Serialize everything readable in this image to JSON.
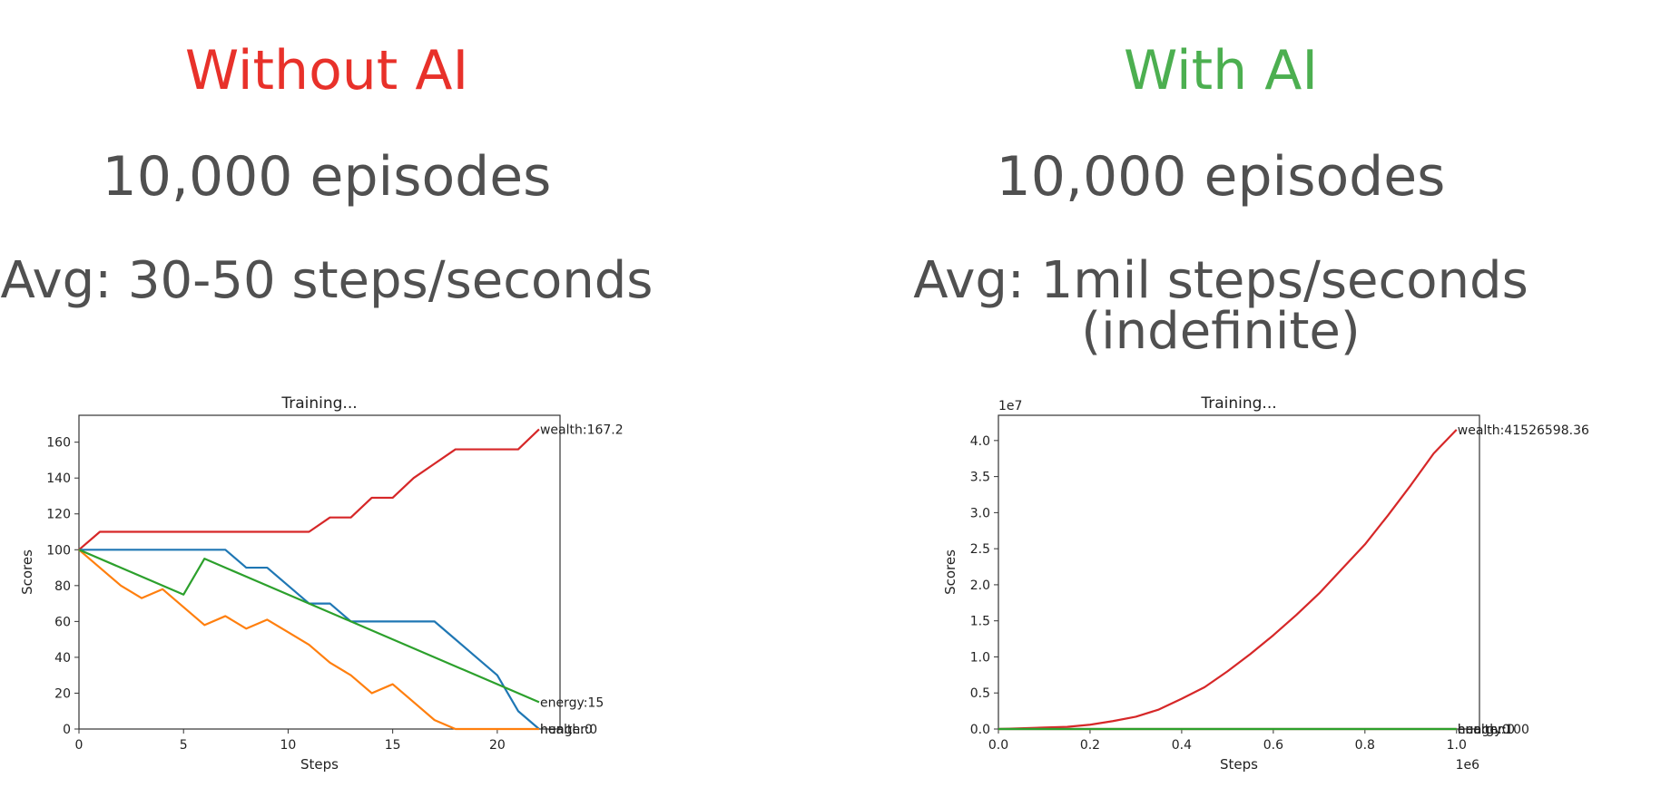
{
  "left": {
    "heading": "Without AI",
    "heading_color": "#e8312a",
    "episodes": "10,000 episodes",
    "avg": "Avg: 30-50 steps/seconds"
  },
  "right": {
    "heading": "With AI",
    "heading_color": "#4caf50",
    "episodes": "10,000 episodes",
    "avg": "Avg: 1mil steps/seconds (indefinite)"
  },
  "chart_data": [
    {
      "type": "line",
      "title": "Training...",
      "xlabel": "Steps",
      "ylabel": "Scores",
      "xlim": [
        0,
        23
      ],
      "ylim": [
        0,
        175
      ],
      "xticks": [
        0,
        5,
        10,
        15,
        20
      ],
      "yticks": [
        0,
        20,
        40,
        60,
        80,
        100,
        120,
        140,
        160
      ],
      "grid": false,
      "series": [
        {
          "name": "wealth",
          "color": "#d62728",
          "end_label": "wealth:167.2",
          "x": [
            0,
            1,
            2,
            3,
            4,
            5,
            6,
            7,
            8,
            9,
            10,
            11,
            12,
            13,
            14,
            15,
            16,
            17,
            18,
            19,
            20,
            21,
            22
          ],
          "y": [
            100,
            110,
            110,
            110,
            110,
            110,
            110,
            110,
            110,
            110,
            110,
            110,
            118,
            118,
            129,
            129,
            140,
            148,
            156,
            156,
            156,
            156,
            167.2
          ]
        },
        {
          "name": "health",
          "color": "#1f77b4",
          "end_label": "health:0",
          "x": [
            0,
            1,
            2,
            3,
            4,
            5,
            6,
            7,
            8,
            9,
            10,
            11,
            12,
            13,
            14,
            15,
            16,
            17,
            18,
            19,
            20,
            21,
            22
          ],
          "y": [
            100,
            100,
            100,
            100,
            100,
            100,
            100,
            100,
            90,
            90,
            80,
            70,
            70,
            60,
            60,
            60,
            60,
            60,
            50,
            40,
            30,
            10,
            0
          ]
        },
        {
          "name": "hunger",
          "color": "#ff7f0e",
          "end_label": "hunger:0",
          "x": [
            0,
            1,
            2,
            3,
            4,
            5,
            6,
            7,
            8,
            9,
            10,
            11,
            12,
            13,
            14,
            15,
            16,
            17,
            18,
            19,
            20,
            21,
            22
          ],
          "y": [
            100,
            90,
            80,
            73,
            78,
            68,
            58,
            63,
            56,
            61,
            54,
            47,
            37,
            30,
            20,
            25,
            15,
            5,
            0,
            0,
            0,
            0,
            0
          ]
        },
        {
          "name": "energy",
          "color": "#2ca02c",
          "end_label": "energy:15",
          "x": [
            0,
            5,
            6,
            22
          ],
          "y": [
            100,
            75,
            95,
            15
          ]
        }
      ]
    },
    {
      "type": "line",
      "title": "Training...",
      "xlabel": "Steps",
      "ylabel": "Scores",
      "x_offset_text": "1e6",
      "y_offset_text": "1e7",
      "xlim": [
        0,
        1.05
      ],
      "ylim": [
        0,
        4.35
      ],
      "xticks": [
        0.0,
        0.2,
        0.4,
        0.6,
        0.8,
        1.0
      ],
      "yticks": [
        0.0,
        0.5,
        1.0,
        1.5,
        2.0,
        2.5,
        3.0,
        3.5,
        4.0
      ],
      "grid": false,
      "series": [
        {
          "name": "wealth",
          "color": "#d62728",
          "end_label": "wealth:41526598.36",
          "x": [
            0,
            0.1,
            0.15,
            0.2,
            0.25,
            0.3,
            0.35,
            0.4,
            0.45,
            0.5,
            0.55,
            0.6,
            0.65,
            0.7,
            0.75,
            0.8,
            0.85,
            0.9,
            0.95,
            1.0
          ],
          "y": [
            0,
            0.02,
            0.03,
            0.06,
            0.11,
            0.17,
            0.27,
            0.42,
            0.58,
            0.8,
            1.04,
            1.3,
            1.58,
            1.88,
            2.22,
            2.56,
            2.96,
            3.38,
            3.82,
            4.15
          ]
        },
        {
          "name": "health",
          "color": "#1f77b4",
          "end_label": "health:0",
          "x": [
            0,
            1.0
          ],
          "y": [
            0,
            0
          ]
        },
        {
          "name": "hunger",
          "color": "#ff7f0e",
          "end_label": "hunger:0",
          "x": [
            0,
            1.0
          ],
          "y": [
            0,
            0
          ]
        },
        {
          "name": "energy",
          "color": "#2ca02c",
          "end_label": "energy:100",
          "x": [
            0,
            1.0
          ],
          "y": [
            0,
            0
          ]
        }
      ]
    }
  ]
}
